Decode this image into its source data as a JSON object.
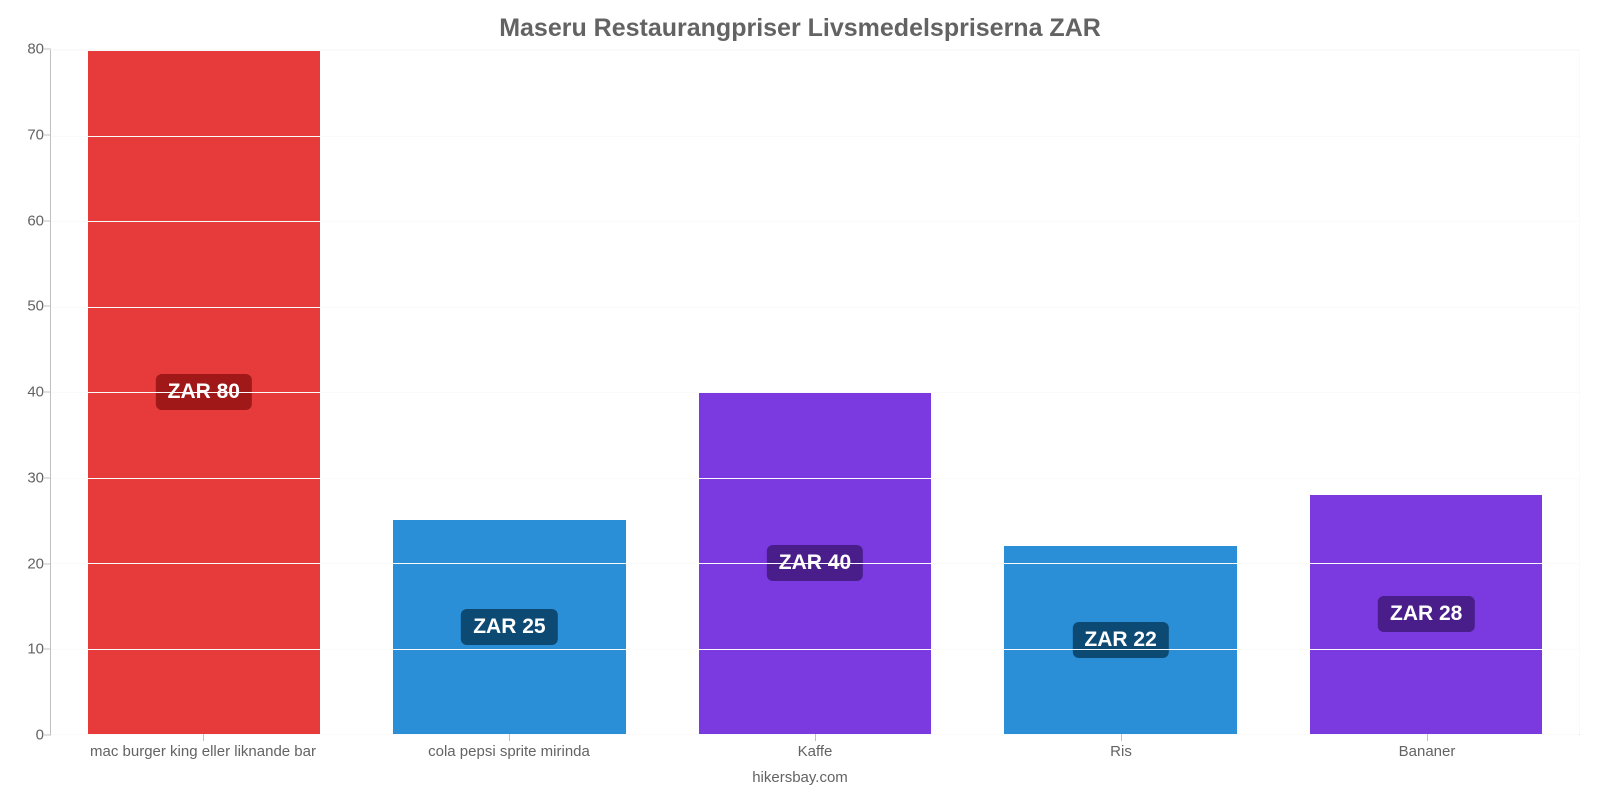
{
  "chart": {
    "type": "bar",
    "title": "Maseru Restaurangpriser Livsmedelspriserna ZAR",
    "title_fontsize": 25,
    "title_color": "#636363",
    "footer": "hikersbay.com",
    "footer_fontsize": 15,
    "footer_color": "#636363",
    "background_color": "#ffffff",
    "plot_background_color": "#ffffff",
    "grid_color": "#fafafa",
    "axis_line_color": "#c0c0c0",
    "tick_label_color": "#636363",
    "tick_label_fontsize": 15,
    "ylim": [
      0,
      80
    ],
    "ytick_step": 10,
    "yticks": [
      0,
      10,
      20,
      30,
      40,
      50,
      60,
      70,
      80
    ],
    "currency_prefix": "ZAR ",
    "value_badge_fontsize": 21,
    "bar_width_pct": 76,
    "categories": [
      "mac burger king eller liknande bar",
      "cola pepsi sprite mirinda",
      "Kaffe",
      "Ris",
      "Bananer"
    ],
    "values": [
      80,
      25,
      40,
      22,
      28
    ],
    "bar_colors": [
      "#e73b3b",
      "#2a8fd7",
      "#7b3ae0",
      "#2a8fd7",
      "#7b3ae0"
    ],
    "badge_colors": [
      "#a01818",
      "#0d4a73",
      "#491e8a",
      "#0d4a73",
      "#491e8a"
    ]
  }
}
